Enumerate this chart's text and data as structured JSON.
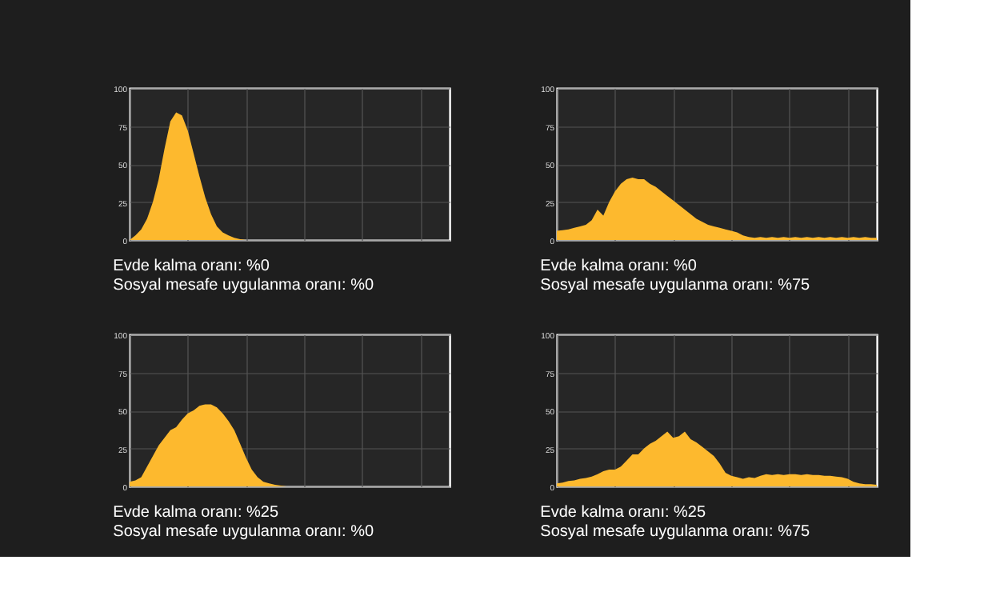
{
  "chart_data": [
    {
      "type": "area",
      "categories": [
        null,
        null,
        null,
        null,
        null,
        null,
        null,
        null,
        null,
        null,
        null,
        null,
        null,
        null,
        null,
        null,
        null,
        null,
        null,
        null,
        null,
        null,
        null,
        null,
        null,
        null,
        null,
        null,
        null,
        null,
        null,
        null,
        null,
        null,
        null,
        null,
        null,
        null,
        null,
        null,
        null,
        null,
        null,
        null,
        null,
        null,
        null,
        null,
        null,
        null,
        null,
        null,
        null,
        null,
        null,
        null
      ],
      "series": [
        {
          "color": "#fdb92e",
          "values": [
            0,
            3,
            7,
            14,
            25,
            40,
            60,
            78,
            84,
            82,
            72,
            57,
            42,
            28,
            17,
            9,
            5,
            3,
            1.5,
            0.5,
            0,
            0,
            0,
            0,
            0,
            0,
            0,
            0,
            0,
            0,
            0,
            0,
            0,
            0,
            0,
            0,
            0,
            0,
            0,
            0,
            0,
            0,
            0,
            0,
            0,
            0,
            0,
            0,
            0,
            0,
            0,
            0,
            0,
            0,
            0,
            0
          ]
        }
      ],
      "ylim": [
        0,
        100
      ],
      "yticks": [
        0,
        25,
        50,
        75,
        100
      ],
      "grid": true,
      "tick_labels": "y",
      "annotations": [
        "Evde kalma oranı: %0",
        "Sosyal mesafe uygulanma oranı: %0"
      ]
    },
    {
      "type": "area",
      "categories": [
        null,
        null,
        null,
        null,
        null,
        null,
        null,
        null,
        null,
        null,
        null,
        null,
        null,
        null,
        null,
        null,
        null,
        null,
        null,
        null,
        null,
        null,
        null,
        null,
        null,
        null,
        null,
        null,
        null,
        null,
        null,
        null,
        null,
        null,
        null,
        null,
        null,
        null,
        null,
        null,
        null,
        null,
        null,
        null,
        null,
        null,
        null,
        null,
        null,
        null,
        null,
        null,
        null,
        null,
        null,
        null
      ],
      "series": [
        {
          "color": "#fdb92e",
          "values": [
            6,
            6.5,
            7,
            8,
            9,
            10,
            13,
            20,
            16,
            25,
            32,
            37,
            40,
            41,
            40,
            40,
            37,
            35,
            32,
            29,
            26,
            23,
            20,
            17,
            14,
            12,
            10,
            9,
            8,
            7,
            6,
            5,
            3,
            2,
            1.5,
            2,
            1.5,
            2,
            1.5,
            2,
            1.5,
            2,
            1.5,
            2,
            1.5,
            2,
            1.5,
            2,
            1.5,
            2,
            1.5,
            2,
            1.5,
            2,
            1.5,
            1.5
          ]
        }
      ],
      "ylim": [
        0,
        100
      ],
      "yticks": [
        0,
        25,
        50,
        75,
        100
      ],
      "grid": true,
      "tick_labels": "y",
      "annotations": [
        "Evde kalma oranı: %0",
        "Sosyal mesafe uygulanma oranı: %75"
      ]
    },
    {
      "type": "area",
      "categories": [
        null,
        null,
        null,
        null,
        null,
        null,
        null,
        null,
        null,
        null,
        null,
        null,
        null,
        null,
        null,
        null,
        null,
        null,
        null,
        null,
        null,
        null,
        null,
        null,
        null,
        null,
        null,
        null,
        null,
        null,
        null,
        null,
        null,
        null,
        null,
        null,
        null,
        null,
        null,
        null,
        null,
        null,
        null,
        null,
        null,
        null,
        null,
        null,
        null,
        null,
        null,
        null,
        null,
        null,
        null,
        null
      ],
      "series": [
        {
          "color": "#fdb92e",
          "values": [
            3,
            4,
            6,
            13,
            20,
            27,
            32,
            37,
            39,
            44,
            48,
            50,
            53,
            54,
            54,
            52,
            48,
            43,
            37,
            28,
            19,
            11,
            6,
            3,
            2,
            1,
            0.5,
            0,
            0,
            0,
            0,
            0,
            0,
            0,
            0,
            0,
            0,
            0,
            0,
            0,
            0,
            0,
            0,
            0,
            0,
            0,
            0,
            0,
            0,
            0,
            0,
            0,
            0,
            0,
            0,
            0
          ]
        }
      ],
      "ylim": [
        0,
        100
      ],
      "yticks": [
        0,
        25,
        50,
        75,
        100
      ],
      "grid": true,
      "tick_labels": "y",
      "annotations": [
        "Evde kalma oranı: %25",
        "Sosyal mesafe uygulanma oranı:  %0"
      ]
    },
    {
      "type": "area",
      "categories": [
        null,
        null,
        null,
        null,
        null,
        null,
        null,
        null,
        null,
        null,
        null,
        null,
        null,
        null,
        null,
        null,
        null,
        null,
        null,
        null,
        null,
        null,
        null,
        null,
        null,
        null,
        null,
        null,
        null,
        null,
        null,
        null,
        null,
        null,
        null,
        null,
        null,
        null,
        null,
        null,
        null,
        null,
        null,
        null,
        null,
        null,
        null,
        null,
        null,
        null,
        null,
        null,
        null,
        null,
        null,
        null
      ],
      "series": [
        {
          "color": "#fdb92e",
          "values": [
            2,
            2.5,
            3.5,
            4,
            5,
            5.5,
            6.5,
            8,
            10,
            11,
            11,
            13,
            17,
            21,
            21,
            25,
            28,
            30,
            33,
            36,
            32,
            33,
            36,
            31,
            29,
            26,
            23,
            20,
            15,
            9,
            7,
            6,
            5,
            6,
            5.5,
            7,
            8,
            7.5,
            8,
            7.5,
            8,
            8,
            7.5,
            8,
            7.5,
            7.5,
            7,
            7,
            6.5,
            6,
            5,
            3,
            2,
            1.5,
            1.5,
            1
          ]
        }
      ],
      "ylim": [
        0,
        100
      ],
      "yticks": [
        0,
        25,
        50,
        75,
        100
      ],
      "grid": true,
      "tick_labels": "y",
      "annotations": [
        "Evde kalma oranı: %25",
        "Sosyal mesafe uygulanma oranı: %75"
      ]
    }
  ]
}
